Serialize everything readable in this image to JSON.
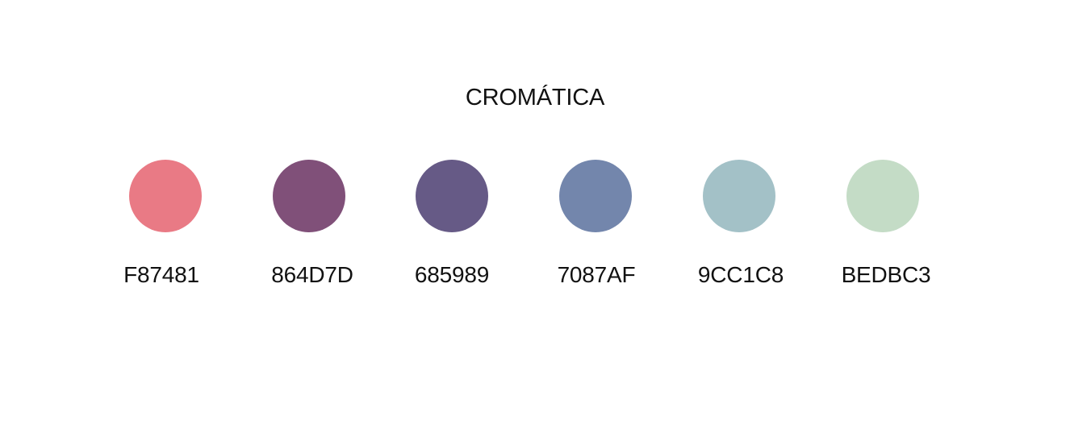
{
  "title": "CROMÁTICA",
  "colors": [
    {
      "code": "F87481",
      "swatch": "#E97A85"
    },
    {
      "code": "864D7D",
      "swatch": "#805079"
    },
    {
      "code": "685989",
      "swatch": "#665A86"
    },
    {
      "code": "7087AF",
      "swatch": "#7386AC"
    },
    {
      "code": "9CC1C8",
      "swatch": "#A3C1C7"
    },
    {
      "code": "BEDBC3",
      "swatch": "#C4DCC6"
    }
  ]
}
